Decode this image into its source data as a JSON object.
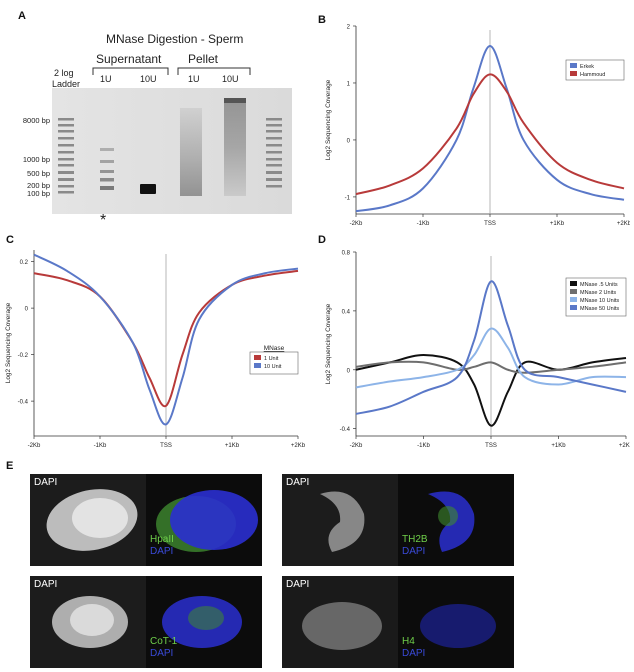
{
  "panelA": {
    "letter": "A",
    "title": "MNase Digestion - Sperm",
    "supernatant": "Supernatant",
    "pellet": "Pellet",
    "lane_units": [
      "1U",
      "10U",
      "1U",
      "10U"
    ],
    "ladder_label": [
      "2 log",
      "Ladder"
    ],
    "ladder_sizes": [
      "8000 bp",
      "1000 bp",
      "500 bp",
      "200 bp",
      "100 bp"
    ],
    "asterisk": "*"
  },
  "panelB": {
    "letter": "B",
    "ylabel": "Log2 Sequencing Coverage",
    "yticks": [
      "2",
      "1",
      "0",
      "-1"
    ],
    "xticks": [
      "-2Kb",
      "-1Kb",
      "TSS",
      "+1Kb",
      "+2Kb"
    ],
    "legend": [
      "Erkek",
      "Hammoud"
    ],
    "colors": [
      "#5a78c8",
      "#b83a3a"
    ]
  },
  "panelC": {
    "letter": "C",
    "ylabel": "Log2 Sequencing Coverage",
    "yticks": [
      "0.2",
      "0",
      "-0.2",
      "-0.4"
    ],
    "xticks": [
      "-2Kb",
      "-1Kb",
      "TSS",
      "+1Kb",
      "+2Kb"
    ],
    "legend_title": "MNase",
    "legend": [
      "1 Unit",
      "10 Unit"
    ],
    "colors": [
      "#b83a3a",
      "#5a78c8"
    ]
  },
  "panelD": {
    "letter": "D",
    "ylabel": "Log2 Sequencing Coverage",
    "yticks": [
      "0.8",
      "0.4",
      "0",
      "-0.4"
    ],
    "xticks": [
      "-2Kb",
      "-1Kb",
      "TSS",
      "+1Kb",
      "+2Kb"
    ],
    "legend": [
      "MNase  .5 Units",
      "MNase   2 Units",
      "MNase 10 Units",
      "MNase 50 Units"
    ],
    "colors": [
      "#111111",
      "#6e6e6e",
      "#8db4e8",
      "#5a78c8"
    ]
  },
  "panelE": {
    "letter": "E",
    "dapi": "DAPI",
    "stains": [
      "HpaII",
      "TH2B",
      "CoT-1",
      "H4"
    ],
    "stain_color": "#6fcf4a",
    "dapi_color": "#3a4ad8"
  },
  "chart_data": [
    {
      "type": "line",
      "title": "",
      "xlabel": "",
      "ylabel": "Log2 Sequencing Coverage",
      "x": [
        -2000,
        -1500,
        -1000,
        -500,
        -250,
        0,
        250,
        500,
        1000,
        1500,
        2000
      ],
      "ylim": [
        -1.3,
        2
      ],
      "series": [
        {
          "name": "Erkek",
          "values": [
            -1.25,
            -1.15,
            -0.85,
            0.0,
            0.9,
            1.65,
            0.9,
            0.0,
            -0.7,
            -0.95,
            -1.05
          ]
        },
        {
          "name": "Hammoud",
          "values": [
            -0.95,
            -0.8,
            -0.5,
            0.2,
            0.8,
            1.15,
            0.85,
            0.3,
            -0.4,
            -0.7,
            -0.85
          ]
        }
      ]
    },
    {
      "type": "line",
      "title": "",
      "xlabel": "",
      "ylabel": "Log2 Sequencing Coverage",
      "x": [
        -2000,
        -1500,
        -1000,
        -500,
        -250,
        0,
        250,
        500,
        1000,
        1500,
        2000
      ],
      "ylim": [
        -0.55,
        0.25
      ],
      "series": [
        {
          "name": "1 Unit",
          "values": [
            0.15,
            0.12,
            0.05,
            -0.15,
            -0.3,
            -0.42,
            -0.2,
            -0.02,
            0.1,
            0.14,
            0.16
          ]
        },
        {
          "name": "10 Unit",
          "values": [
            0.23,
            0.16,
            0.05,
            -0.15,
            -0.35,
            -0.5,
            -0.3,
            -0.05,
            0.1,
            0.15,
            0.17
          ]
        }
      ]
    },
    {
      "type": "line",
      "title": "",
      "xlabel": "",
      "ylabel": "Log2 Sequencing Coverage",
      "x": [
        -2000,
        -1500,
        -1000,
        -500,
        -250,
        0,
        250,
        500,
        1000,
        1500,
        2000
      ],
      "ylim": [
        -0.45,
        0.8
      ],
      "series": [
        {
          "name": "MNase .5 Units",
          "values": [
            0.0,
            0.05,
            0.1,
            0.05,
            -0.1,
            -0.38,
            -0.15,
            0.05,
            0.0,
            0.05,
            0.08
          ]
        },
        {
          "name": "MNase 2 Units",
          "values": [
            0.02,
            0.05,
            0.05,
            0.0,
            0.02,
            0.05,
            0.0,
            -0.02,
            0.0,
            0.02,
            0.05
          ]
        },
        {
          "name": "MNase 10 Units",
          "values": [
            -0.12,
            -0.08,
            -0.05,
            0.0,
            0.1,
            0.28,
            0.15,
            -0.05,
            -0.1,
            -0.05,
            -0.05
          ]
        },
        {
          "name": "MNase 50 Units",
          "values": [
            -0.3,
            -0.25,
            -0.15,
            -0.05,
            0.2,
            0.6,
            0.3,
            0.0,
            -0.05,
            -0.1,
            -0.15
          ]
        }
      ]
    }
  ]
}
